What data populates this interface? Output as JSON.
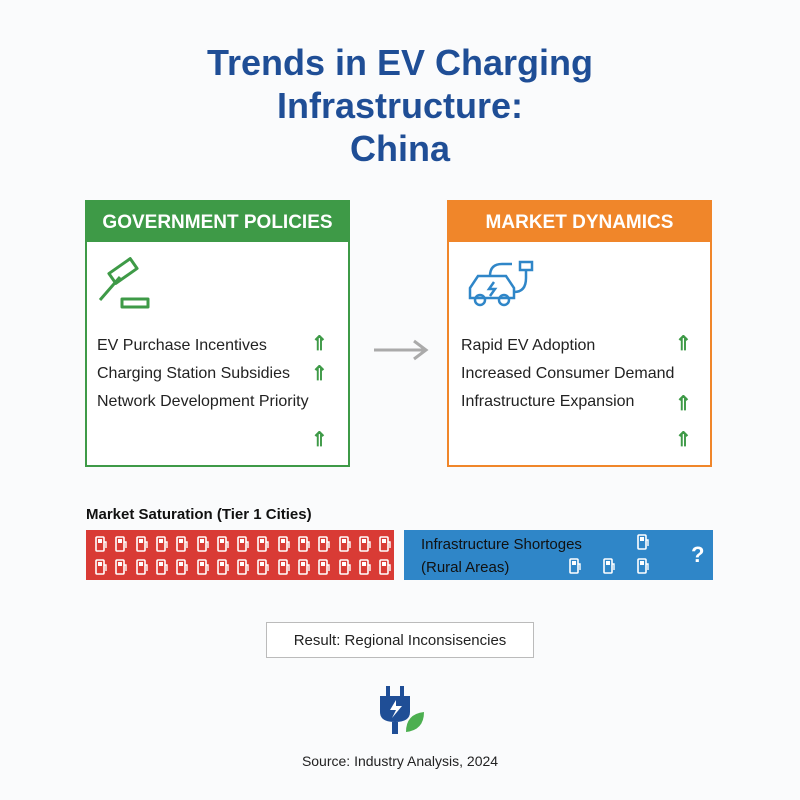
{
  "header": {
    "title_lines": [
      "Trends in EV Charging",
      "Infrastructure:",
      "China"
    ]
  },
  "panels": [
    {
      "heading": "GOVERNMENT POLICIES",
      "items": [
        "EV Purchase Incentives",
        "Charging Station Subsidies",
        "Network Development Priority"
      ]
    },
    {
      "heading": "MARKET DYNAMICS",
      "items": [
        "Rapid EV Adoption",
        "Increased Consumer Demand",
        "Infrastructure Expansion"
      ]
    }
  ],
  "saturation": {
    "label": "Market Saturation (Tier 1 Cities)"
  },
  "shortage": {
    "lines": [
      "Infrastructure Shortoges",
      "(Rural Areas)"
    ],
    "mark": "?"
  },
  "result": "Result: Regional Inconsisencies",
  "source": "Source: Industry Analysis, 2024"
}
